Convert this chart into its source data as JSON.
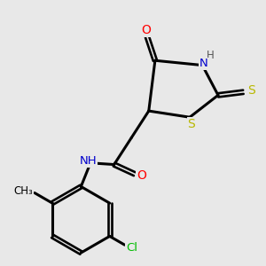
{
  "bg_color": "#e8e8e8",
  "atom_colors": {
    "C": "#000000",
    "N": "#0000cd",
    "O": "#ff0000",
    "S": "#b8b800",
    "Cl": "#00bb00",
    "H": "#555555"
  }
}
